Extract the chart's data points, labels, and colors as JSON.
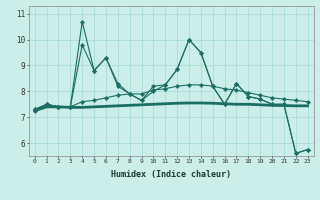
{
  "x": [
    0,
    1,
    2,
    3,
    4,
    5,
    6,
    7,
    8,
    9,
    10,
    11,
    12,
    13,
    14,
    15,
    16,
    17,
    18,
    19,
    20,
    21,
    22,
    23
  ],
  "line_jagged1": [
    7.3,
    7.5,
    7.4,
    7.4,
    9.8,
    8.8,
    9.3,
    8.3,
    7.9,
    7.65,
    8.2,
    8.25,
    8.85,
    10.0,
    9.5,
    8.2,
    7.5,
    8.3,
    7.8,
    7.7,
    7.5,
    7.5,
    5.6,
    5.75
  ],
  "line_jagged2": [
    7.3,
    7.5,
    7.4,
    7.4,
    10.7,
    8.8,
    9.3,
    8.2,
    7.9,
    7.65,
    8.0,
    8.25,
    8.85,
    10.0,
    9.5,
    8.2,
    7.5,
    8.3,
    7.8,
    7.7,
    7.5,
    7.5,
    5.6,
    5.75
  ],
  "line_smooth": [
    7.25,
    7.5,
    7.4,
    7.4,
    7.6,
    7.65,
    7.75,
    7.85,
    7.9,
    7.9,
    8.05,
    8.1,
    8.2,
    8.25,
    8.25,
    8.2,
    8.1,
    8.05,
    7.95,
    7.85,
    7.75,
    7.7,
    7.65,
    7.6
  ],
  "line_flat": [
    7.25,
    7.4,
    7.4,
    7.38,
    7.38,
    7.4,
    7.42,
    7.44,
    7.46,
    7.48,
    7.5,
    7.52,
    7.54,
    7.55,
    7.55,
    7.54,
    7.52,
    7.5,
    7.5,
    7.48,
    7.46,
    7.45,
    7.44,
    7.44
  ],
  "bg_color": "#cceee8",
  "grid_color": "#aaddda",
  "line_color": "#1a6e63",
  "ylabel_values": [
    6,
    7,
    8,
    9,
    10,
    11
  ],
  "xlabel": "Humidex (Indice chaleur)",
  "ylim": [
    5.5,
    11.3
  ],
  "xlim": [
    -0.5,
    23.5
  ]
}
